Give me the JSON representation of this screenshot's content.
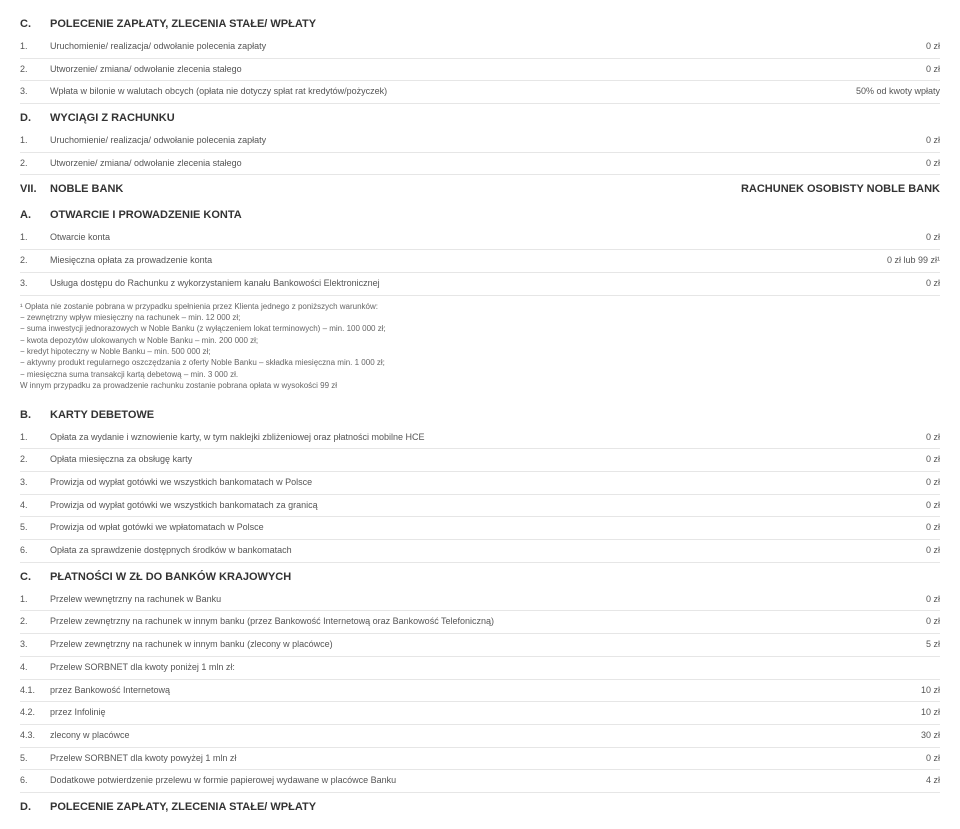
{
  "sections": [
    {
      "id": "C.",
      "title": "POLECENIE ZAPŁATY, ZLECENIA STAŁE/ WPŁATY",
      "right": ""
    },
    {
      "id": "D.",
      "title": "WYCIĄGI Z RACHUNKU",
      "right": ""
    },
    {
      "id": "VII.",
      "title": "NOBLE BANK",
      "right": "RACHUNEK OSOBISTY NOBLE BANK"
    },
    {
      "id": "A.",
      "title": "OTWARCIE I PROWADZENIE KONTA",
      "right": ""
    },
    {
      "id": "B.",
      "title": "KARTY DEBETOWE",
      "right": ""
    },
    {
      "id": "C.",
      "title": "PŁATNOŚCI W ZŁ DO BANKÓW KRAJOWYCH",
      "right": ""
    },
    {
      "id": "D.",
      "title": "POLECENIE ZAPŁATY, ZLECENIA STAŁE/ WPŁATY",
      "right": ""
    }
  ],
  "block0": [
    {
      "id": "1.",
      "label": "Uruchomienie/ realizacja/ odwołanie polecenia zapłaty",
      "value": "0 zł"
    },
    {
      "id": "2.",
      "label": "Utworzenie/ zmiana/ odwołanie zlecenia stałego",
      "value": "0 zł"
    },
    {
      "id": "3.",
      "label": "Wpłata w bilonie w walutach obcych (opłata nie dotyczy spłat rat kredytów/pożyczek)",
      "value": "50% od kwoty wpłaty"
    }
  ],
  "block1": [
    {
      "id": "1.",
      "label": "Uruchomienie/ realizacja/ odwołanie polecenia zapłaty",
      "value": "0 zł"
    },
    {
      "id": "2.",
      "label": "Utworzenie/ zmiana/ odwołanie zlecenia stałego",
      "value": "0 zł"
    }
  ],
  "block2": [
    {
      "id": "1.",
      "label": "Otwarcie konta",
      "value": "0 zł"
    },
    {
      "id": "2.",
      "label": "Miesięczna opłata za prowadzenie konta",
      "value": "0 zł lub 99 zł¹"
    },
    {
      "id": "3.",
      "label": "Usługa dostępu do Rachunku z wykorzystaniem kanału Bankowości Elektronicznej",
      "value": "0 zł"
    }
  ],
  "footnote": [
    "¹ Opłata nie zostanie pobrana w przypadku spełnienia przez Klienta jednego z poniższych warunków:",
    "− zewnętrzny wpływ miesięczny na rachunek – min. 12 000 zł;",
    "− suma inwestycji jednorazowych w Noble Banku (z wyłączeniem lokat terminowych) – min. 100 000 zł;",
    "− kwota depozytów ulokowanych w Noble Banku – min. 200 000 zł;",
    "− kredyt hipoteczny w Noble Banku – min. 500 000 zł;",
    "− aktywny produkt regularnego oszczędzania z oferty Noble Banku – składka miesięczna min. 1 000 zł;",
    "− miesięczna suma transakcji kartą debetową – min. 3 000 zł.",
    "W innym przypadku za prowadzenie rachunku zostanie pobrana opłata w wysokości 99 zł"
  ],
  "block3": [
    {
      "id": "1.",
      "label": "Opłata za wydanie i wznowienie karty, w tym naklejki zbliżeniowej oraz płatności mobilne HCE",
      "value": "0 zł"
    },
    {
      "id": "2.",
      "label": "Opłata miesięczna za obsługę karty",
      "value": "0 zł"
    },
    {
      "id": "3.",
      "label": "Prowizja od wypłat gotówki we wszystkich bankomatach w Polsce",
      "value": "0 zł"
    },
    {
      "id": "4.",
      "label": "Prowizja od wypłat gotówki we wszystkich bankomatach za granicą",
      "value": "0 zł"
    },
    {
      "id": "5.",
      "label": "Prowizja od wpłat gotówki we wpłatomatach w Polsce",
      "value": "0 zł"
    },
    {
      "id": "6.",
      "label": "Opłata za sprawdzenie dostępnych środków w bankomatach",
      "value": "0 zł"
    }
  ],
  "block4": [
    {
      "id": "1.",
      "label": "Przelew wewnętrzny na rachunek w Banku",
      "value": "0 zł"
    },
    {
      "id": "2.",
      "label": "Przelew zewnętrzny na rachunek w innym banku (przez Bankowość Internetową oraz Bankowość Telefoniczną)",
      "value": "0 zł"
    },
    {
      "id": "3.",
      "label": "Przelew zewnętrzny na rachunek w innym banku (zlecony w placówce)",
      "value": "5 zł"
    },
    {
      "id": "4.",
      "label": "Przelew SORBNET dla kwoty poniżej 1 mln zł:",
      "value": ""
    },
    {
      "id": "4.1.",
      "label": "przez Bankowość Internetową",
      "value": "10 zł"
    },
    {
      "id": "4.2.",
      "label": "przez Infolinię",
      "value": "10 zł"
    },
    {
      "id": "4.3.",
      "label": "zlecony w placówce",
      "value": "30 zł"
    },
    {
      "id": "5.",
      "label": "Przelew SORBNET dla kwoty powyżej 1 mln zł",
      "value": "0 zł"
    },
    {
      "id": "6.",
      "label": "Dodatkowe potwierdzenie przelewu w formie papierowej wydawane w placówce Banku",
      "value": "4 zł"
    }
  ]
}
